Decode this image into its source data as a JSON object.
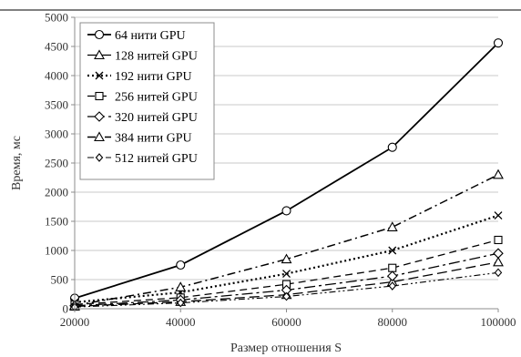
{
  "chart_data": {
    "type": "line",
    "title": "",
    "xlabel": "Размер отношения S",
    "ylabel": "Время, мс",
    "x": [
      20000,
      40000,
      60000,
      80000,
      100000
    ],
    "xlim": [
      20000,
      100000
    ],
    "ylim": [
      0,
      5000
    ],
    "x_ticks": [
      "20000",
      "40000",
      "60000",
      "80000",
      "100000"
    ],
    "y_ticks": [
      "0",
      "500",
      "1000",
      "1500",
      "2000",
      "2500",
      "3000",
      "3500",
      "4000",
      "4500",
      "5000"
    ],
    "grid": "horizontal",
    "legend_position": "top-left",
    "series": [
      {
        "name": "64 нити GPU",
        "values": [
          180,
          750,
          1680,
          2770,
          4560
        ],
        "marker": "circle",
        "dash": "solid",
        "stroke_width": 1.8
      },
      {
        "name": "128 нитей GPU",
        "values": [
          40,
          120,
          240,
          460,
          800
        ],
        "marker": "triangle",
        "dash": "long-dash",
        "stroke_width": 1.3
      },
      {
        "name": "192 нити GPU",
        "values": [
          110,
          280,
          600,
          1000,
          1600
        ],
        "marker": "x",
        "dash": "dot",
        "stroke_width": 2.2
      },
      {
        "name": "256 нитей GPU",
        "values": [
          70,
          190,
          420,
          700,
          1180
        ],
        "marker": "square",
        "dash": "dash",
        "stroke_width": 1.3
      },
      {
        "name": "320 нитей GPU",
        "values": [
          50,
          150,
          320,
          560,
          950
        ],
        "marker": "diamond",
        "dash": "long-dash-dot",
        "stroke_width": 1.3
      },
      {
        "name": "384 нити GPU",
        "values": [
          60,
          370,
          850,
          1400,
          2300
        ],
        "marker": "triangle",
        "dash": "dash-dot",
        "stroke_width": 1.5
      },
      {
        "name": "512 нитей GPU",
        "values": [
          30,
          100,
          210,
          390,
          620
        ],
        "marker": "small-diamond",
        "dash": "dash-dot-dot",
        "stroke_width": 1.1
      }
    ]
  }
}
